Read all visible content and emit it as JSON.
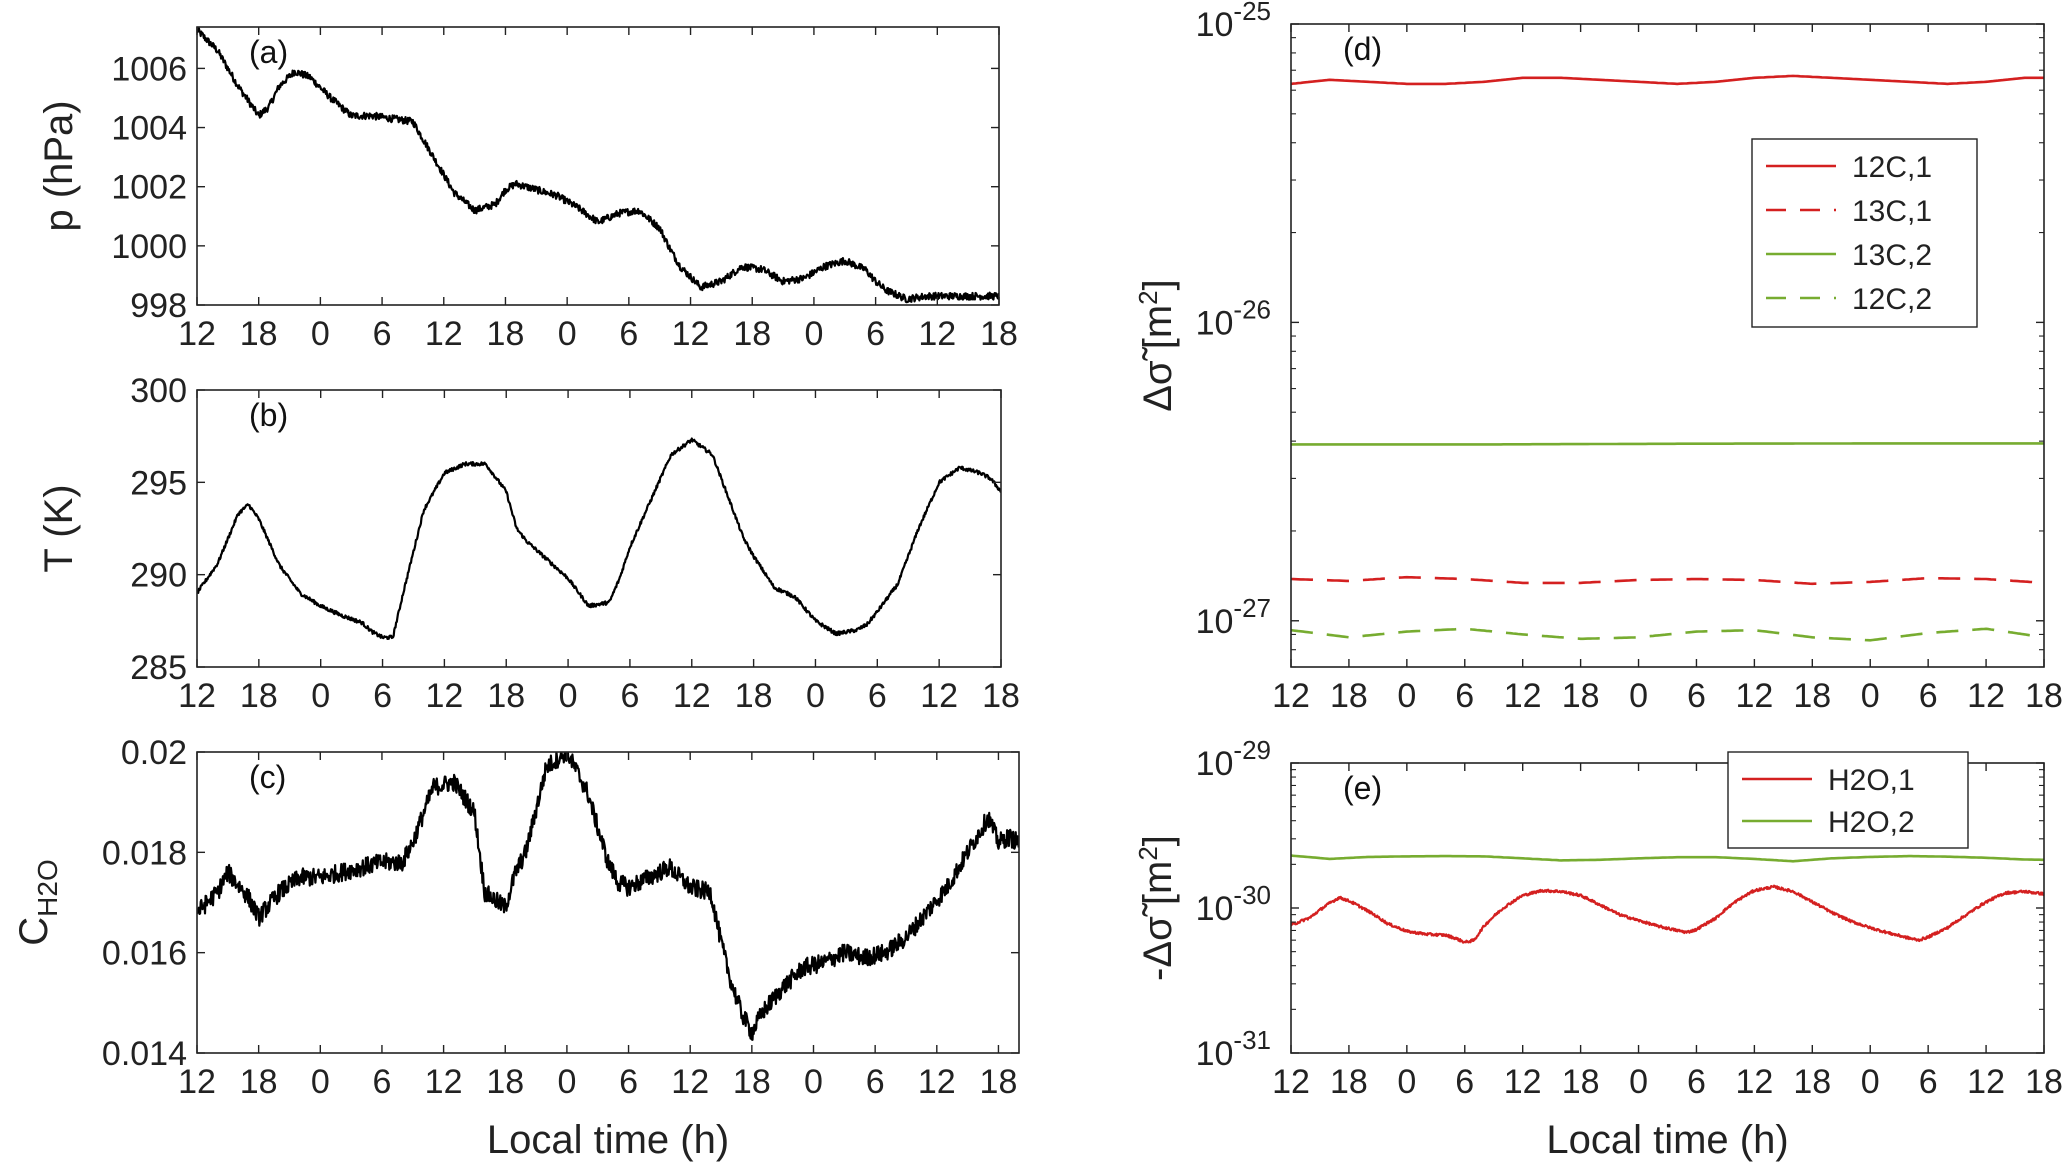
{
  "chart_data": [
    {
      "id": "a",
      "type": "line",
      "panel_label": "(a)",
      "ylabel": "p (hPa)",
      "ylim": [
        998,
        1007.4
      ],
      "yticks": [
        998,
        1000,
        1002,
        1004,
        1006
      ],
      "xlim": [
        0,
        78
      ],
      "xticks": [
        0,
        6,
        12,
        18,
        24,
        30,
        36,
        42,
        48,
        54,
        60,
        66,
        72,
        78
      ],
      "xticklabels": [
        "12",
        "18",
        "0",
        "6",
        "12",
        "18",
        "0",
        "6",
        "12",
        "18",
        "0",
        "6",
        "12",
        "18"
      ],
      "series": [
        {
          "color": "#000000",
          "dash": "",
          "noise": 0.12,
          "x": [
            0,
            2,
            4,
            6,
            7,
            8,
            9.5,
            11,
            13,
            15,
            17,
            19,
            21,
            23,
            25,
            27,
            29,
            30,
            31,
            33,
            35,
            37,
            39,
            41,
            43,
            45,
            46,
            47,
            49,
            51,
            53,
            55,
            56,
            57,
            59,
            61,
            63,
            65,
            66,
            67,
            69,
            71,
            73,
            75,
            77,
            78
          ],
          "y": [
            1007.3,
            1006.6,
            1005.4,
            1004.4,
            1004.7,
            1005.4,
            1005.9,
            1005.7,
            1005.0,
            1004.4,
            1004.4,
            1004.3,
            1004.2,
            1003.0,
            1001.8,
            1001.2,
            1001.4,
            1001.9,
            1002.1,
            1001.9,
            1001.7,
            1001.3,
            1000.8,
            1001.1,
            1001.2,
            1000.6,
            999.9,
            999.3,
            998.6,
            998.8,
            999.3,
            999.2,
            999.0,
            998.8,
            998.9,
            999.3,
            999.5,
            999.2,
            998.8,
            998.5,
            998.2,
            998.3,
            998.3,
            998.3,
            998.3,
            998.3
          ]
        }
      ]
    },
    {
      "id": "b",
      "type": "line",
      "panel_label": "(b)",
      "ylabel": "T (K)",
      "ylim": [
        285,
        300
      ],
      "yticks": [
        285,
        290,
        295,
        300
      ],
      "xlim": [
        0,
        78
      ],
      "xticks": [
        0,
        6,
        12,
        18,
        24,
        30,
        36,
        42,
        48,
        54,
        60,
        66,
        72,
        78
      ],
      "xticklabels": [
        "12",
        "18",
        "0",
        "6",
        "12",
        "18",
        "0",
        "6",
        "12",
        "18",
        "0",
        "6",
        "12",
        "18"
      ],
      "series": [
        {
          "color": "#000000",
          "dash": "",
          "noise": 0.1,
          "x": [
            0,
            2,
            4,
            5,
            6,
            8,
            10,
            12,
            14,
            16,
            17,
            18,
            19,
            20,
            22,
            24,
            26,
            28,
            30,
            31,
            32,
            34,
            36,
            38,
            40,
            41,
            42,
            44,
            46,
            48,
            50,
            52,
            53,
            54,
            56,
            58,
            60,
            62,
            64,
            65,
            66,
            68,
            70,
            72,
            74,
            76,
            77,
            78
          ],
          "y": [
            289.0,
            290.6,
            293.3,
            293.8,
            293.0,
            290.5,
            289.0,
            288.3,
            287.8,
            287.4,
            286.9,
            286.6,
            286.6,
            289.0,
            293.5,
            295.5,
            296.0,
            296.0,
            294.5,
            292.5,
            291.8,
            290.8,
            289.8,
            288.3,
            288.5,
            289.8,
            291.5,
            294.0,
            296.5,
            297.3,
            296.5,
            293.5,
            292.0,
            291.0,
            289.3,
            288.8,
            287.5,
            286.8,
            287.0,
            287.3,
            288.0,
            289.5,
            292.5,
            295.0,
            295.8,
            295.5,
            295.2,
            294.5
          ]
        }
      ]
    },
    {
      "id": "c",
      "type": "line",
      "panel_label": "(c)",
      "ylabel": "C",
      "ylabel_sub": "H2O",
      "ylim": [
        0.014,
        0.02
      ],
      "yticks": [
        0.014,
        0.016,
        0.018,
        0.02
      ],
      "yticklabels": [
        "0.014",
        "0.016",
        "0.018",
        "0.02"
      ],
      "xlim": [
        0,
        80
      ],
      "xticks": [
        0,
        6,
        12,
        18,
        24,
        30,
        36,
        42,
        48,
        54,
        60,
        66,
        72,
        78
      ],
      "xticklabels": [
        "12",
        "18",
        "0",
        "6",
        "12",
        "18",
        "0",
        "6",
        "12",
        "18",
        "0",
        "6",
        "12",
        "18"
      ],
      "xlabel": "Local time (h)",
      "series": [
        {
          "color": "#000000",
          "dash": "",
          "noise": 0.00018,
          "x": [
            0,
            2,
            3,
            5,
            6,
            8,
            10,
            12,
            14,
            16,
            18,
            20,
            21,
            23,
            25,
            27,
            28,
            30,
            31,
            32,
            34,
            36,
            38,
            40,
            41,
            42,
            44,
            46,
            48,
            50,
            51,
            52,
            53,
            54,
            55,
            57,
            59,
            61,
            63,
            65,
            67,
            69,
            71,
            73,
            75,
            77,
            78,
            79,
            80
          ],
          "y": [
            0.0168,
            0.0172,
            0.0176,
            0.0171,
            0.0167,
            0.0172,
            0.0175,
            0.0175,
            0.0176,
            0.0177,
            0.0178,
            0.0178,
            0.0182,
            0.0193,
            0.0194,
            0.0188,
            0.0172,
            0.0169,
            0.0176,
            0.018,
            0.0197,
            0.02,
            0.0192,
            0.0178,
            0.0174,
            0.0173,
            0.0175,
            0.0177,
            0.0173,
            0.0172,
            0.0162,
            0.0154,
            0.0148,
            0.0144,
            0.0148,
            0.0153,
            0.0157,
            0.0158,
            0.016,
            0.0159,
            0.016,
            0.0163,
            0.0168,
            0.0173,
            0.018,
            0.0187,
            0.0182,
            0.0183,
            0.0182
          ]
        }
      ]
    },
    {
      "id": "d",
      "type": "line",
      "panel_label": "(d)",
      "yscale": "log",
      "ylim": [
        7e-28,
        1e-25
      ],
      "yticks": [
        1e-27,
        1e-26,
        1e-25
      ],
      "yticklabels": [
        [
          "10",
          "-27"
        ],
        [
          "10",
          "-26"
        ],
        [
          "10",
          "-25"
        ]
      ],
      "ylabel": "Δσ̃ [m²]",
      "xlim": [
        0,
        78
      ],
      "xticks": [
        0,
        6,
        12,
        18,
        24,
        30,
        36,
        42,
        48,
        54,
        60,
        66,
        72,
        78
      ],
      "xticklabels": [
        "12",
        "18",
        "0",
        "6",
        "12",
        "18",
        "0",
        "6",
        "12",
        "18",
        "0",
        "6",
        "12",
        "18"
      ],
      "legend": {
        "position": "upper-right"
      },
      "series": [
        {
          "name": "12C,1",
          "color": "#d42020",
          "dash": "",
          "noise": 0,
          "x": [
            0,
            4,
            8,
            12,
            16,
            20,
            24,
            28,
            32,
            36,
            40,
            44,
            48,
            52,
            56,
            60,
            64,
            68,
            72,
            76,
            78
          ],
          "y": [
            6.3e-26,
            6.5e-26,
            6.4e-26,
            6.3e-26,
            6.3e-26,
            6.4e-26,
            6.6e-26,
            6.6e-26,
            6.5e-26,
            6.4e-26,
            6.3e-26,
            6.4e-26,
            6.6e-26,
            6.7e-26,
            6.6e-26,
            6.5e-26,
            6.4e-26,
            6.3e-26,
            6.4e-26,
            6.6e-26,
            6.6e-26
          ]
        },
        {
          "name": "13C,1",
          "color": "#d42020",
          "dash": "22,14",
          "noise": 0,
          "x": [
            0,
            6,
            12,
            18,
            24,
            30,
            36,
            42,
            48,
            54,
            60,
            66,
            72,
            78
          ],
          "y": [
            1.38e-27,
            1.36e-27,
            1.4e-27,
            1.38e-27,
            1.34e-27,
            1.34e-27,
            1.37e-27,
            1.38e-27,
            1.37e-27,
            1.33e-27,
            1.35e-27,
            1.39e-27,
            1.38e-27,
            1.34e-27
          ]
        },
        {
          "name": "13C,2",
          "color": "#77ac30",
          "dash": "",
          "noise": 0,
          "x": [
            0,
            20,
            40,
            60,
            78
          ],
          "y": [
            3.9e-27,
            3.9e-27,
            3.92e-27,
            3.93e-27,
            3.93e-27
          ]
        },
        {
          "name": "12C,2",
          "color": "#77ac30",
          "dash": "22,14",
          "noise": 0,
          "x": [
            0,
            6,
            12,
            18,
            24,
            30,
            36,
            42,
            48,
            54,
            60,
            66,
            72,
            78
          ],
          "y": [
            9.3e-28,
            8.8e-28,
            9.2e-28,
            9.4e-28,
            9e-28,
            8.7e-28,
            8.8e-28,
            9.2e-28,
            9.3e-28,
            8.8e-28,
            8.6e-28,
            9.1e-28,
            9.4e-28,
            8.8e-28
          ]
        }
      ]
    },
    {
      "id": "e",
      "type": "line",
      "panel_label": "(e)",
      "yscale": "log",
      "ylim": [
        1e-31,
        1e-29
      ],
      "yticks": [
        1e-31,
        1e-30,
        1e-29
      ],
      "yticklabels": [
        [
          "10",
          "-31"
        ],
        [
          "10",
          "-30"
        ],
        [
          "10",
          "-29"
        ]
      ],
      "ylabel": "-Δσ̃ [m²]",
      "xlim": [
        0,
        78
      ],
      "xticks": [
        0,
        6,
        12,
        18,
        24,
        30,
        36,
        42,
        48,
        54,
        60,
        66,
        72,
        78
      ],
      "xticklabels": [
        "12",
        "18",
        "0",
        "6",
        "12",
        "18",
        "0",
        "6",
        "12",
        "18",
        "0",
        "6",
        "12",
        "18"
      ],
      "xlabel": "Local time (h)",
      "legend": {
        "position": "top-right"
      },
      "series": [
        {
          "name": "H2O,1",
          "color": "#d42020",
          "dash": "",
          "noise": 0.02,
          "x": [
            0,
            2,
            4,
            5,
            6,
            8,
            10,
            12,
            14,
            16,
            17,
            18,
            19,
            20,
            22,
            24,
            26,
            28,
            30,
            32,
            34,
            36,
            38,
            40,
            41,
            42,
            44,
            46,
            48,
            50,
            52,
            54,
            56,
            58,
            60,
            62,
            64,
            65,
            66,
            68,
            70,
            72,
            74,
            76,
            78
          ],
          "y": [
            7.6e-31,
            8.6e-31,
            1.08e-30,
            1.18e-30,
            1.12e-30,
            9.5e-31,
            7.8e-31,
            6.9e-31,
            6.6e-31,
            6.5e-31,
            6.2e-31,
            5.8e-31,
            6e-31,
            7.5e-31,
            1e-30,
            1.22e-30,
            1.32e-30,
            1.3e-30,
            1.22e-30,
            1.05e-30,
            9e-31,
            8.2e-31,
            7.5e-31,
            7e-31,
            6.8e-31,
            7.1e-31,
            8.5e-31,
            1.1e-30,
            1.32e-30,
            1.4e-30,
            1.3e-30,
            1.1e-30,
            9.3e-31,
            8.1e-31,
            7.3e-31,
            6.7e-31,
            6.2e-31,
            6e-31,
            6.3e-31,
            7.3e-31,
            9e-31,
            1.1e-30,
            1.27e-30,
            1.3e-30,
            1.25e-30
          ]
        },
        {
          "name": "H2O,2",
          "color": "#77ac30",
          "dash": "",
          "noise": 0,
          "x": [
            0,
            4,
            8,
            12,
            16,
            20,
            24,
            28,
            32,
            36,
            40,
            44,
            48,
            52,
            56,
            60,
            64,
            68,
            72,
            76,
            78
          ],
          "y": [
            2.3e-30,
            2.18e-30,
            2.25e-30,
            2.27e-30,
            2.28e-30,
            2.27e-30,
            2.2e-30,
            2.13e-30,
            2.15e-30,
            2.2e-30,
            2.24e-30,
            2.24e-30,
            2.18e-30,
            2.1e-30,
            2.2e-30,
            2.25e-30,
            2.28e-30,
            2.26e-30,
            2.22e-30,
            2.16e-30,
            2.15e-30
          ]
        }
      ]
    }
  ]
}
